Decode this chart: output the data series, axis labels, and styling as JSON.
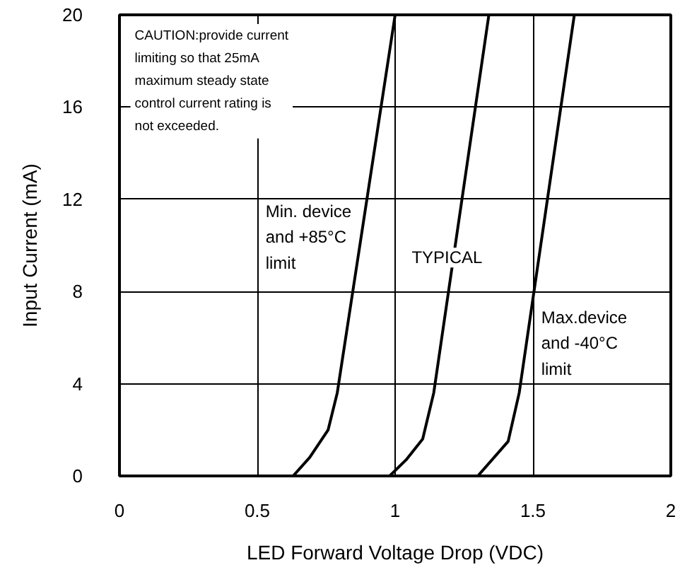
{
  "chart_data": {
    "type": "line",
    "xlabel": "LED Forward Voltage Drop (VDC)",
    "ylabel": "Input Current (mA)",
    "xlim": [
      0,
      2
    ],
    "ylim": [
      0,
      20
    ],
    "xticks": [
      0,
      0.5,
      1,
      1.5,
      2
    ],
    "yticks": [
      0,
      4,
      8,
      12,
      16,
      20
    ],
    "grid": true,
    "marker": "none",
    "line_style": "solid",
    "annotations": [
      "CAUTION:provide current limiting so that 25mA maximum steady state control current rating is not exceeded."
    ],
    "series": [
      {
        "name": "Min. device and +85°C limit",
        "color": "#000000",
        "x": [
          0.63,
          0.69,
          0.757,
          0.79,
          1.0
        ],
        "values": [
          0,
          0.8,
          2.0,
          3.6,
          20
        ]
      },
      {
        "name": "TYPICAL",
        "color": "#000000",
        "x": [
          0.98,
          1.04,
          1.1,
          1.14,
          1.34
        ],
        "values": [
          0,
          0.7,
          1.6,
          3.6,
          20
        ]
      },
      {
        "name": "Max.device and -40°C limit",
        "color": "#000000",
        "x": [
          1.3,
          1.41,
          1.45,
          1.65
        ],
        "values": [
          0,
          1.5,
          3.6,
          20
        ]
      }
    ]
  }
}
